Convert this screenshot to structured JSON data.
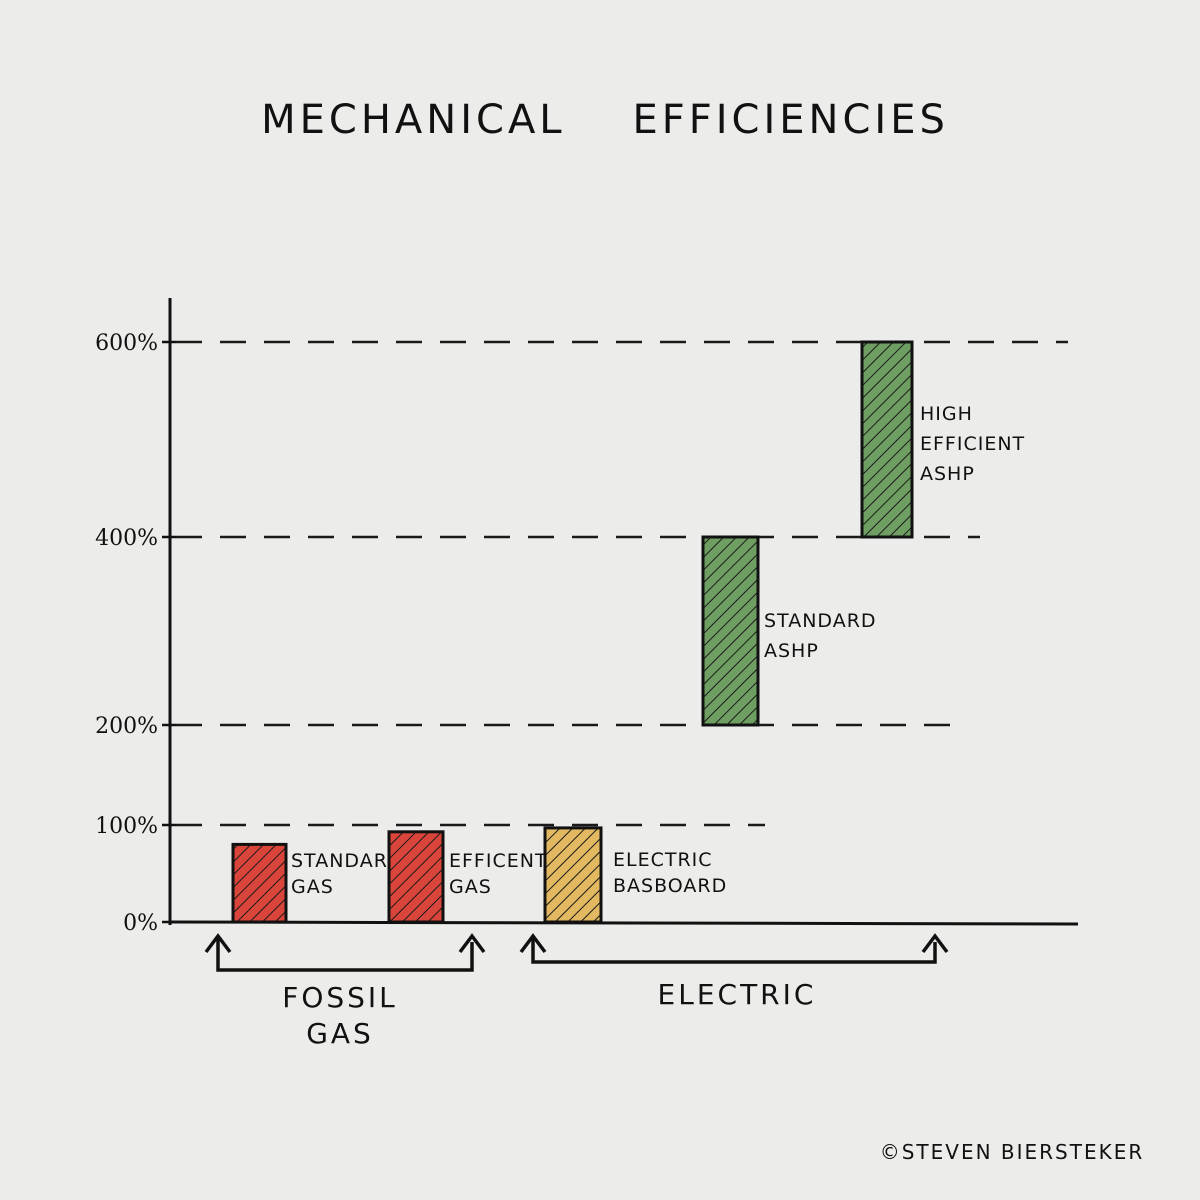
{
  "chart_data": {
    "type": "bar",
    "title": "MECHANICAL    EFFICIENCIES",
    "y_unit": "%",
    "ylim": [
      0,
      600
    ],
    "y_ticks": [
      {
        "value": 0,
        "label": "0%"
      },
      {
        "value": 100,
        "label": "100%"
      },
      {
        "value": 200,
        "label": "200%"
      },
      {
        "value": 400,
        "label": "400%"
      },
      {
        "value": 600,
        "label": "600%"
      }
    ],
    "y_scale": "piecewise (non-uniform tick spacing)",
    "bars": [
      {
        "label_lines": [
          "STANDARD",
          "GAS"
        ],
        "min": 0,
        "max": 80,
        "color": "#d9453a",
        "group": "FOSSIL GAS"
      },
      {
        "label_lines": [
          "EFFICENT",
          "GAS"
        ],
        "min": 0,
        "max": 93,
        "color": "#d9453a",
        "group": "FOSSIL GAS"
      },
      {
        "label_lines": [
          "ELECTRIC",
          "BASBOARD"
        ],
        "min": 0,
        "max": 97,
        "color": "#e2b860",
        "group": "ELECTRIC"
      },
      {
        "label_lines": [
          "STANDARD",
          "ASHP"
        ],
        "min": 200,
        "max": 400,
        "color": "#6f9e63",
        "group": "ELECTRIC"
      },
      {
        "label_lines": [
          "HIGH",
          "EFFICIENT",
          "ASHP"
        ],
        "min": 400,
        "max": 600,
        "color": "#6f9e63",
        "group": "ELECTRIC"
      }
    ],
    "groups": [
      {
        "label_lines": [
          "FOSSIL",
          "GAS"
        ]
      },
      {
        "label_lines": [
          "ELECTRIC"
        ]
      }
    ],
    "grid": "dashed horizontal lines at 100%, 200%, 400%, 600%"
  },
  "credit": "©STEVEN BIERSTEKER"
}
